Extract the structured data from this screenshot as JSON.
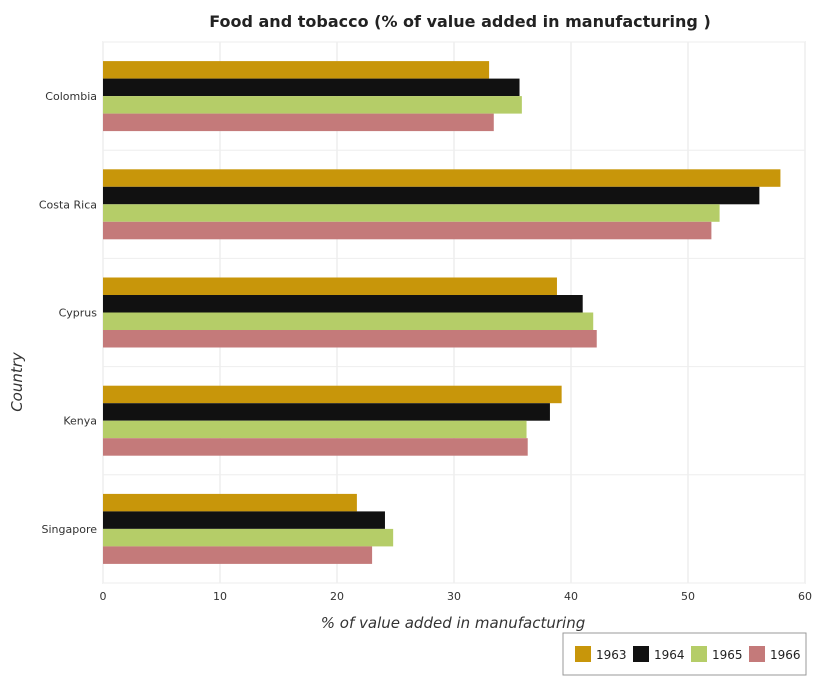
{
  "chart_data": {
    "type": "bar",
    "orientation": "horizontal",
    "title": "Food and tobacco (% of value added in manufacturing )",
    "xlabel": "% of value added in manufacturing",
    "ylabel": "Country",
    "categories": [
      "Colombia",
      "Costa Rica",
      "Cyprus",
      "Kenya",
      "Singapore"
    ],
    "series": [
      {
        "name": "1963",
        "color": "#c8960a",
        "values": [
          33.0,
          57.9,
          38.8,
          39.2,
          21.7
        ]
      },
      {
        "name": "1964",
        "color": "#111111",
        "values": [
          35.6,
          56.1,
          41.0,
          38.2,
          24.1
        ]
      },
      {
        "name": "1965",
        "color": "#b5cd68",
        "values": [
          35.8,
          52.7,
          41.9,
          36.2,
          24.8
        ]
      },
      {
        "name": "1966",
        "color": "#c47a7a",
        "values": [
          33.4,
          52.0,
          42.2,
          36.3,
          23.0
        ]
      }
    ],
    "xlim": [
      0,
      60
    ],
    "xticks": [
      "0",
      "10",
      "20",
      "30",
      "40",
      "50",
      "60"
    ],
    "grid": true,
    "legend_position": "bottom-right"
  }
}
